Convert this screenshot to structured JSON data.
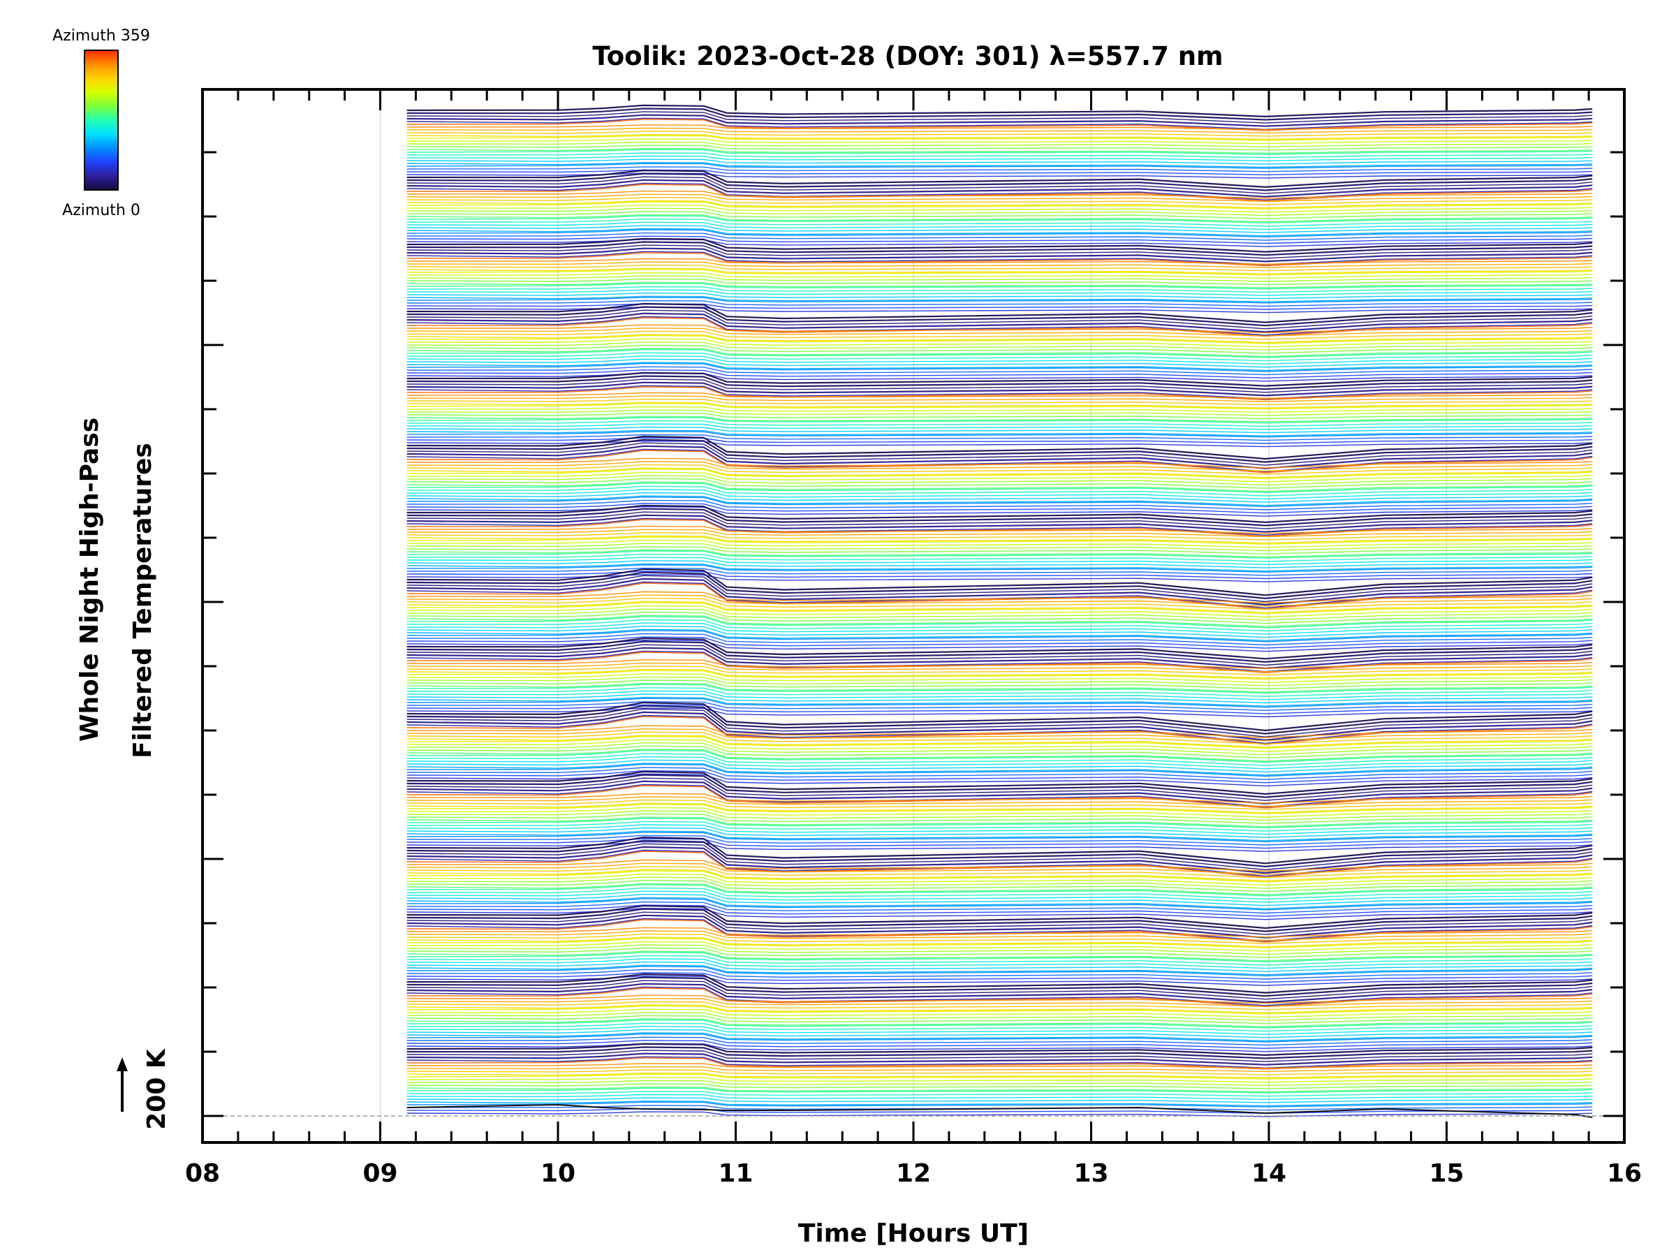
{
  "chart_data": {
    "type": "line",
    "title": "Toolik: 2023-Oct-28 (DOY: 301) λ=557.7 nm",
    "xlabel": "Time [Hours UT]",
    "ylabel_line1": "Whole Night High-Pass",
    "ylabel_line2": "Filtered Temperatures",
    "scale_marker": "200 K",
    "xlim": [
      8,
      16
    ],
    "x_ticks": [
      "08",
      "09",
      "10",
      "11",
      "12",
      "13",
      "14",
      "15",
      "16"
    ],
    "colorbar": {
      "top_label": "Azimuth 359",
      "bottom_label": "Azimuth 0",
      "colormap": "rainbow",
      "colors": [
        "#ff2a00",
        "#ff8c00",
        "#ffd200",
        "#d8ff00",
        "#7dff3c",
        "#22ffb0",
        "#00e0ff",
        "#0090ff",
        "#2040ff",
        "#2d1f9c",
        "#150a40"
      ]
    },
    "sample_times_hours": [
      9.15,
      10.0,
      10.25,
      10.48,
      10.82,
      10.95,
      11.27,
      13.27,
      13.98,
      14.65,
      15.72,
      15.82
    ],
    "profile": {
      "groups": 15,
      "curves_per_group": 24,
      "offsets_by_time": [
        0,
        1,
        -2,
        -7,
        -6,
        6,
        8,
        3,
        12,
        4,
        1,
        -1
      ],
      "group_amplitudes": [
        6,
        9,
        7,
        10,
        7,
        12,
        9,
        14,
        11,
        15,
        12,
        14,
        12,
        10,
        6
      ]
    }
  }
}
